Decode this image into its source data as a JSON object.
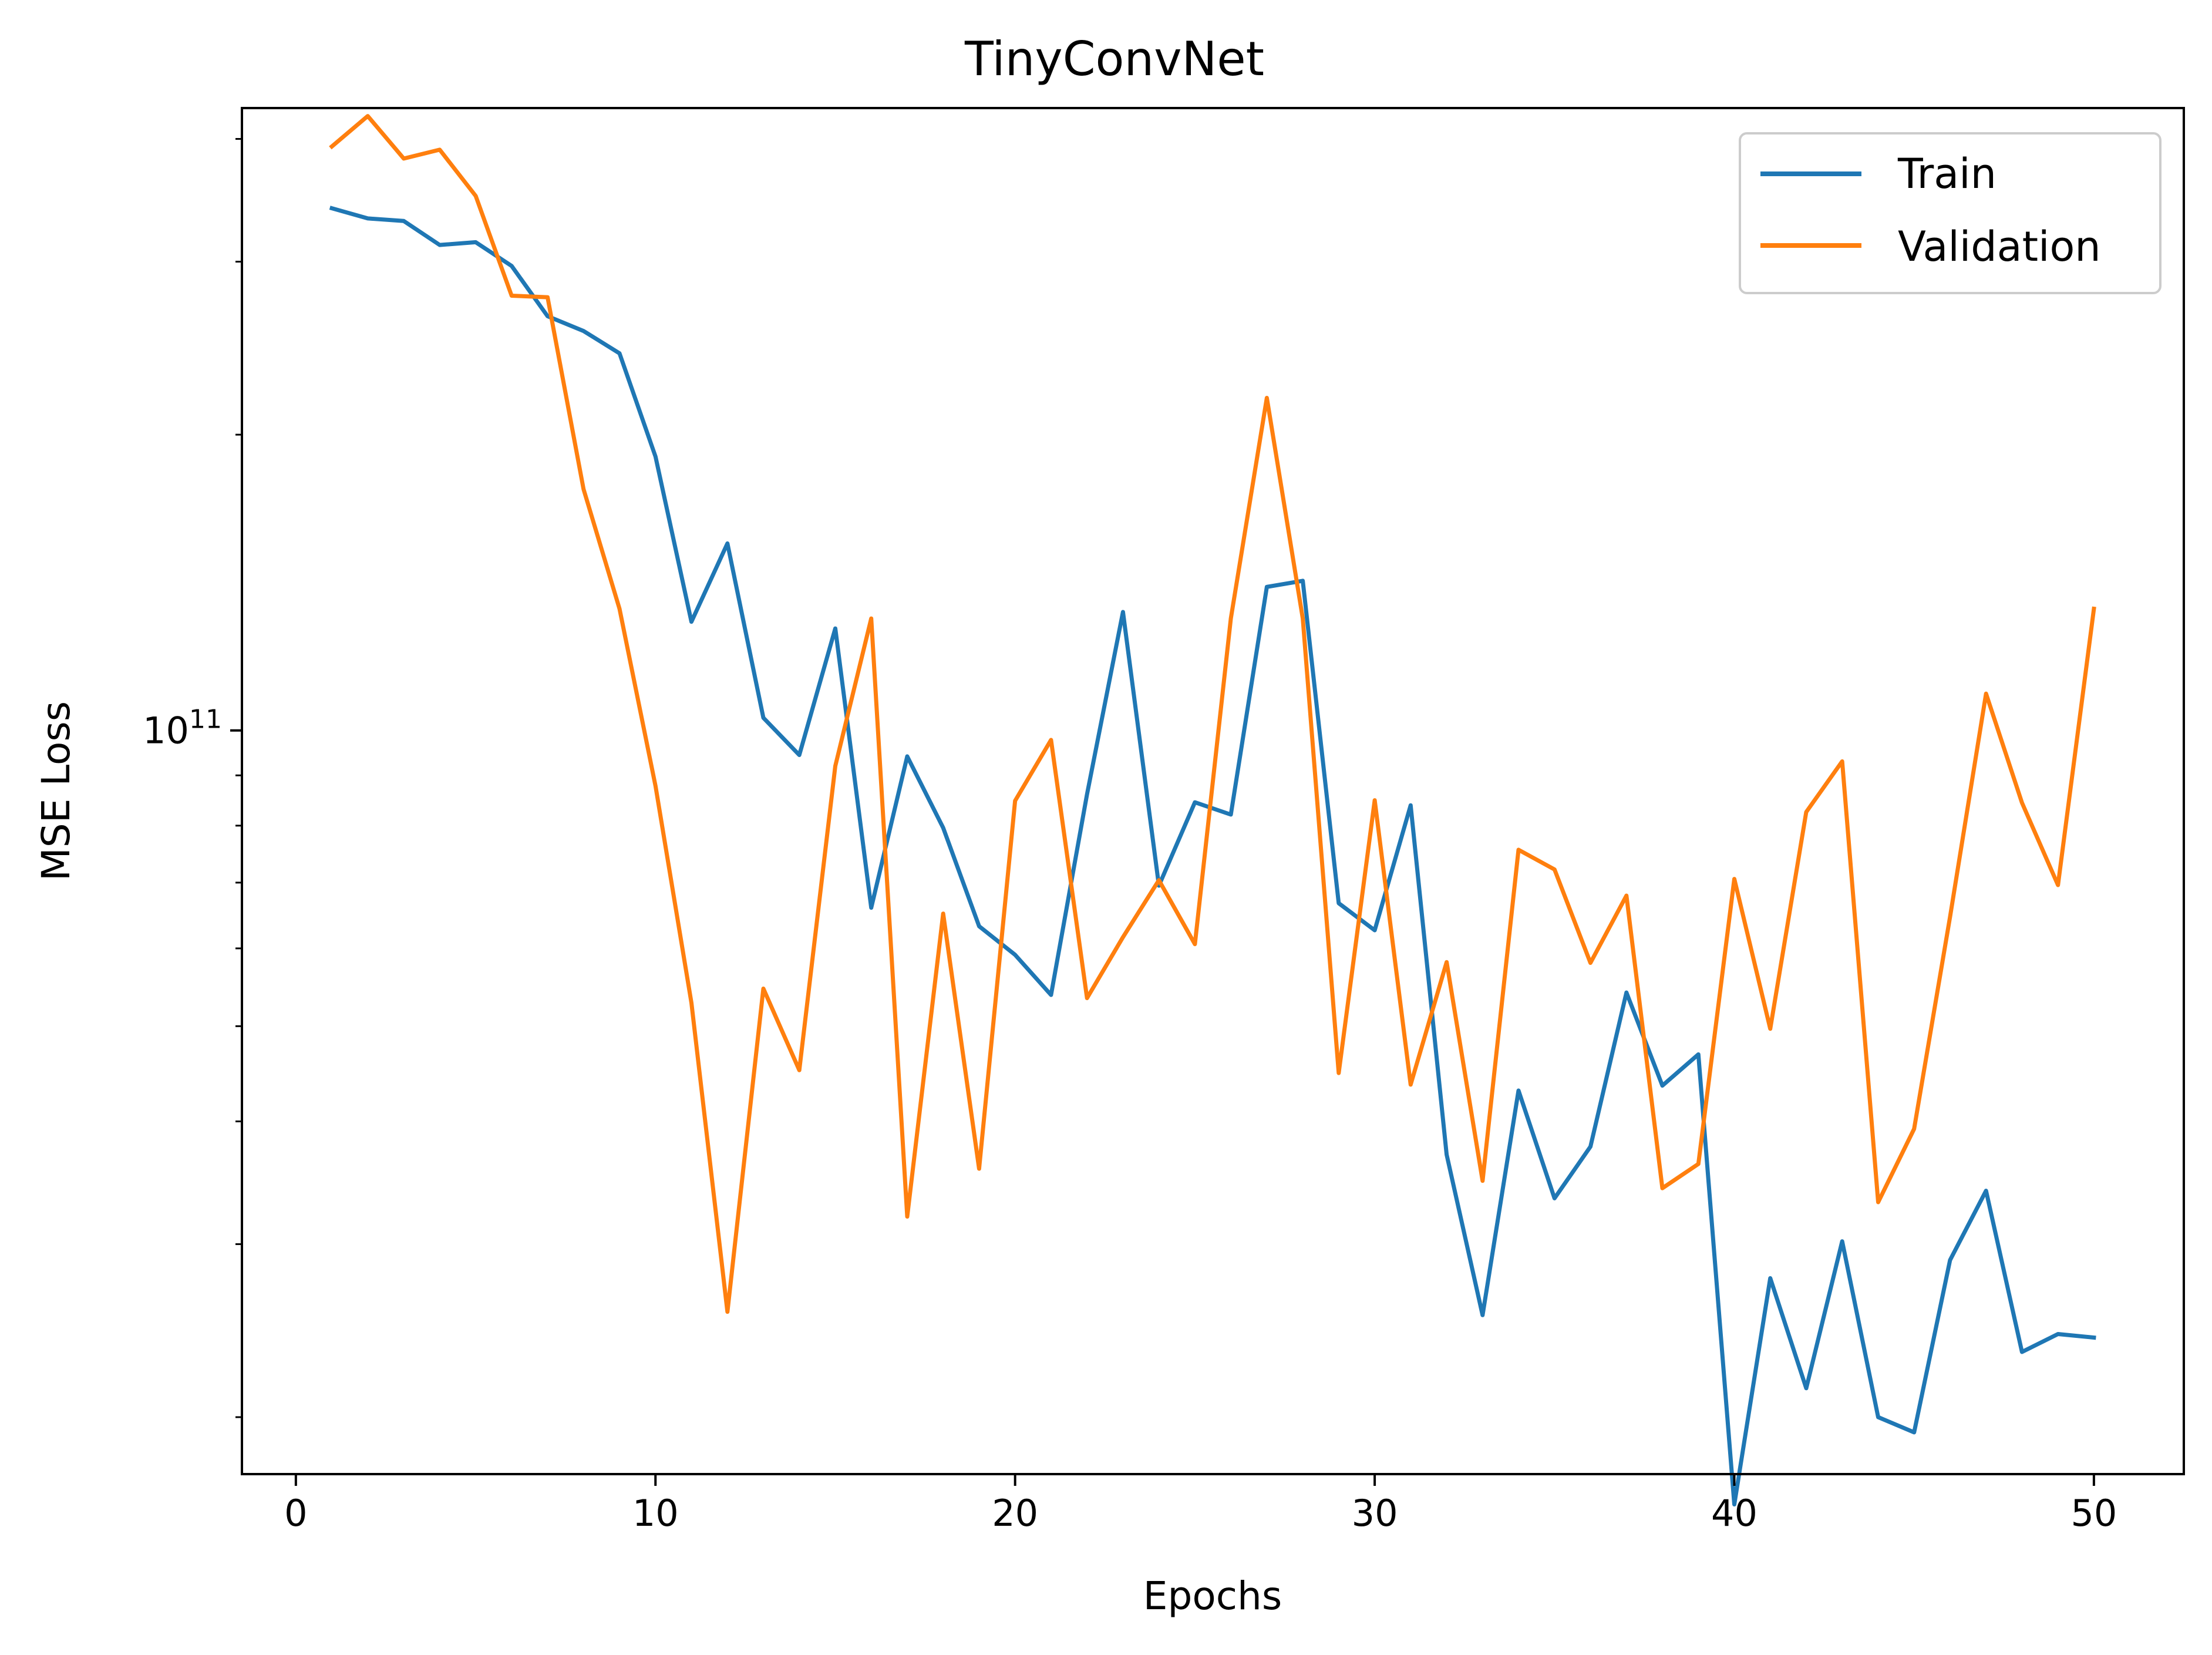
{
  "chart_data": {
    "type": "line",
    "title": "TinyConvNet",
    "xlabel": "Epochs",
    "ylabel": "MSE Loss",
    "yscale": "log",
    "xlim": [
      -1.5,
      52.5
    ],
    "ylim": [
      17500000000.0,
      430000000000.0
    ],
    "x_ticks": [
      0,
      10,
      20,
      30,
      40,
      50
    ],
    "y_major_ticks": [
      {
        "value": 100000000000.0,
        "base": "10",
        "exponent": "11"
      }
    ],
    "y_minor_ticks": [
      20000000000.0,
      30000000000.0,
      40000000000.0,
      50000000000.0,
      60000000000.0,
      70000000000.0,
      80000000000.0,
      90000000000.0,
      200000000000.0,
      300000000000.0,
      400000000000.0
    ],
    "grid": false,
    "legend": {
      "position": "top-right"
    },
    "x": [
      1,
      2,
      3,
      4,
      5,
      6,
      7,
      8,
      9,
      10,
      11,
      12,
      13,
      14,
      15,
      16,
      17,
      18,
      19,
      20,
      21,
      22,
      23,
      24,
      25,
      26,
      27,
      28,
      29,
      30,
      31,
      32,
      33,
      34,
      35,
      36,
      37,
      38,
      39,
      40,
      41,
      42,
      43,
      44,
      45,
      46,
      47,
      48,
      49,
      50
    ],
    "series": [
      {
        "name": "Train",
        "color": "#1f77b4",
        "values": [
          340000000000.0,
          332000000000.0,
          330000000000.0,
          312000000000.0,
          314000000000.0,
          297000000000.0,
          264000000000.0,
          255000000000.0,
          242000000000.0,
          190000000000.0,
          129000000000.0,
          155000000000.0,
          103000000000.0,
          94400000000.0,
          127000000000.0,
          66000000000.0,
          94100000000.0,
          79600000000.0,
          63200000000.0,
          59100000000.0,
          53800000000.0,
          86100000000.0,
          132000000000.0,
          69500000000.0,
          84500000000.0,
          82100000000.0,
          140000000000.0,
          142000000000.0,
          66700000000.0,
          62600000000.0,
          83900000000.0,
          37000000000.0,
          25400000000.0,
          43000000000.0,
          33400000000.0,
          37700000000.0,
          54100000000.0,
          43500000000.0,
          46800000000.0,
          16300000000.0,
          27700000000.0,
          21400000000.0,
          30200000000.0,
          20000000000.0,
          19300000000.0,
          28900000000.0,
          34000000000.0,
          23300000000.0,
          24300000000.0,
          24100000000.0
        ]
      },
      {
        "name": "Validation",
        "color": "#ff7f0e",
        "values": [
          393000000000.0,
          422000000000.0,
          382000000000.0,
          390000000000.0,
          350000000000.0,
          277000000000.0,
          276000000000.0,
          176000000000.0,
          133000000000.0,
          87800000000.0,
          52800000000.0,
          25600000000.0,
          54600000000.0,
          45100000000.0,
          92000000000.0,
          130000000000.0,
          32000000000.0,
          65100000000.0,
          35800000000.0,
          84800000000.0,
          97800000000.0,
          53400000000.0,
          61600000000.0,
          70400000000.0,
          60600000000.0,
          130000000000.0,
          218000000000.0,
          130000000000.0,
          44800000000.0,
          84900000000.0,
          43600000000.0,
          58100000000.0,
          34800000000.0,
          75600000000.0,
          72200000000.0,
          58000000000.0,
          67900000000.0,
          34200000000.0,
          36200000000.0,
          70600000000.0,
          49700000000.0,
          82600000000.0,
          93000000000.0,
          33100000000.0,
          39300000000.0,
          64600000000.0,
          109000000000.0,
          84400000000.0,
          69600000000.0,
          133000000000.0
        ]
      }
    ]
  }
}
